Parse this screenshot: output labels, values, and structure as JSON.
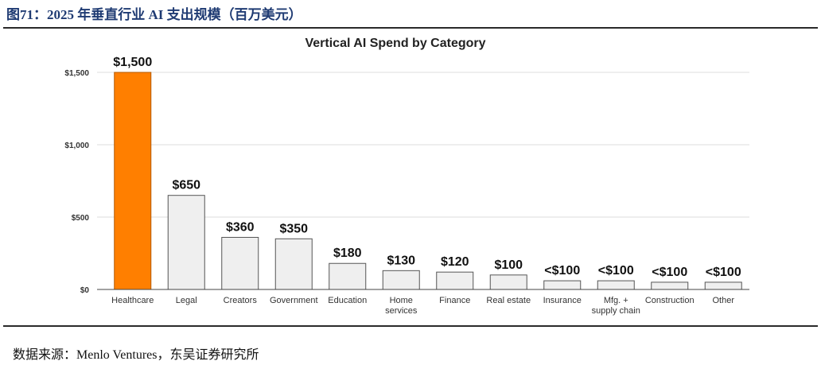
{
  "figure_title": "图71：2025 年垂直行业 AI 支出规模（百万美元）",
  "source_note": "数据来源：Menlo Ventures，东吴证券研究所",
  "colors": {
    "highlight": "#ff7f00",
    "bar": "#efefef",
    "bar_stroke": "#555555",
    "grid": "#dddddd",
    "title_rule": "#1f3b73"
  },
  "chart_data": {
    "type": "bar",
    "title": "Vertical AI Spend by Category",
    "xlabel": "",
    "ylabel": "",
    "ylim": [
      0,
      1500
    ],
    "yticks": [
      0,
      500,
      1000,
      1500
    ],
    "ytick_labels": [
      "$0",
      "$500",
      "$1,000",
      "$1,500"
    ],
    "grid": true,
    "categories": [
      "Healthcare",
      "Legal",
      "Creators",
      "Government",
      "Education",
      "Home services",
      "Finance",
      "Real estate",
      "Insurance",
      "Mfg. + supply chain",
      "Construction",
      "Other"
    ],
    "category_lines": [
      [
        "Healthcare"
      ],
      [
        "Legal"
      ],
      [
        "Creators"
      ],
      [
        "Government"
      ],
      [
        "Education"
      ],
      [
        "Home",
        "services"
      ],
      [
        "Finance"
      ],
      [
        "Real estate"
      ],
      [
        "Insurance"
      ],
      [
        "Mfg. +",
        "supply chain"
      ],
      [
        "Construction"
      ],
      [
        "Other"
      ]
    ],
    "values": [
      1500,
      650,
      360,
      350,
      180,
      130,
      120,
      100,
      60,
      60,
      50,
      50
    ],
    "value_labels": [
      "$1,500",
      "$650",
      "$360",
      "$350",
      "$180",
      "$130",
      "$120",
      "$100",
      "<$100",
      "<$100",
      "<$100",
      "<$100"
    ],
    "highlight_index": 0
  }
}
